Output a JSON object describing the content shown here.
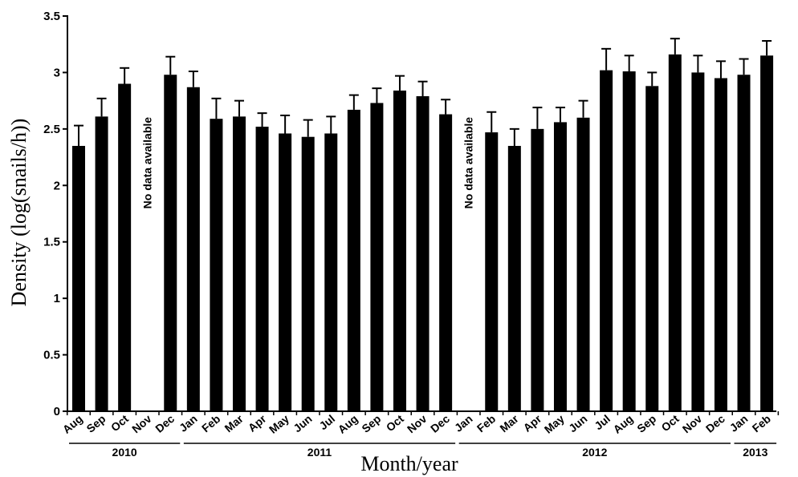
{
  "chart_data": {
    "type": "bar",
    "title": "",
    "xlabel": "Month/year",
    "ylabel": "Density (log(snails/h))",
    "ylim": [
      0,
      3.5
    ],
    "yticks": [
      "0",
      "0.5",
      "1",
      "1.5",
      "2",
      "2.5",
      "3",
      "3.5"
    ],
    "grid": false,
    "colors": {
      "bar": "#000000",
      "axis": "#000000"
    },
    "categories": [
      "Aug",
      "Sep",
      "Oct",
      "Nov",
      "Dec",
      "Jan",
      "Feb",
      "Mar",
      "Apr",
      "May",
      "Jun",
      "Jul",
      "Aug",
      "Sep",
      "Oct",
      "Nov",
      "Dec",
      "Jan",
      "Feb",
      "Mar",
      "Apr",
      "May",
      "Jun",
      "Jul",
      "Aug",
      "Sep",
      "Oct",
      "Nov",
      "Dec",
      "Jan",
      "Feb"
    ],
    "values": [
      2.35,
      2.61,
      2.9,
      null,
      2.98,
      2.87,
      2.59,
      2.61,
      2.52,
      2.46,
      2.43,
      2.46,
      2.67,
      2.73,
      2.84,
      2.79,
      2.63,
      null,
      2.47,
      2.35,
      2.5,
      2.56,
      2.6,
      3.02,
      3.01,
      2.88,
      3.16,
      3.0,
      2.95,
      2.98,
      3.15
    ],
    "error_upper": [
      2.53,
      2.77,
      3.04,
      null,
      3.14,
      3.01,
      2.77,
      2.75,
      2.64,
      2.62,
      2.58,
      2.61,
      2.8,
      2.86,
      2.97,
      2.92,
      2.76,
      null,
      2.65,
      2.5,
      2.69,
      2.69,
      2.75,
      3.21,
      3.15,
      3.0,
      3.3,
      3.15,
      3.1,
      3.12,
      3.28
    ],
    "years": [
      {
        "label": "2010",
        "first": 0,
        "last": 4
      },
      {
        "label": "2011",
        "first": 5,
        "last": 16
      },
      {
        "label": "2012",
        "first": 17,
        "last": 28
      },
      {
        "label": "2013",
        "first": 29,
        "last": 30
      }
    ],
    "annotations": [
      {
        "text": "No data available",
        "index": 3,
        "at": 2.2
      },
      {
        "text": "No data available",
        "index": 17,
        "at": 2.2
      }
    ]
  }
}
